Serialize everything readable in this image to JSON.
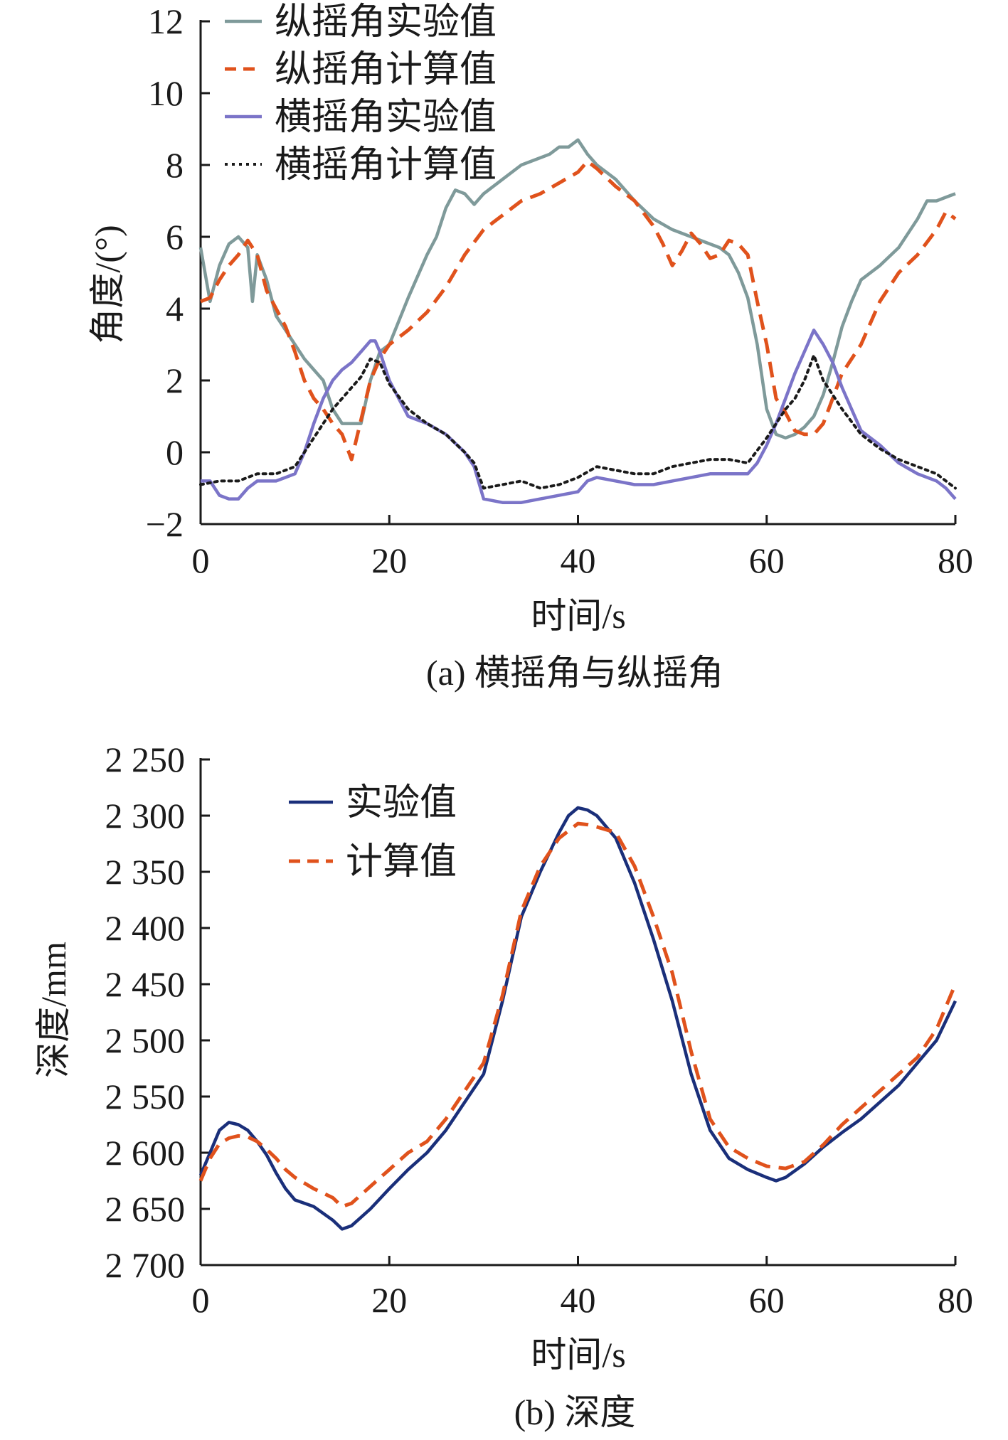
{
  "colors": {
    "pitch_exp": "#7f9a9a",
    "pitch_calc": "#e0521c",
    "roll_exp": "#7b74c8",
    "roll_calc": "#1a1a1a",
    "depth_exp": "#1a2f7a",
    "depth_calc": "#e0521c",
    "axis": "#1a1a1a"
  },
  "chart_data": [
    {
      "type": "line",
      "title": "",
      "caption": "(a) 横摇角与纵摇角",
      "xlabel": "时间/s",
      "ylabel": "角度/(°)",
      "xlim": [
        0,
        80
      ],
      "ylim": [
        -2,
        12
      ],
      "xticks": [
        0,
        20,
        40,
        60,
        80
      ],
      "xtick_labels": [
        "0",
        "20",
        "40",
        "60",
        "80"
      ],
      "yticks": [
        -2,
        0,
        2,
        4,
        6,
        8,
        10,
        12
      ],
      "ytick_labels": [
        "−2",
        "0",
        "2",
        "4",
        "6",
        "8",
        "10",
        "12"
      ],
      "legend": "top-left",
      "series": [
        {
          "name": "纵摇角实验值",
          "style": "solid",
          "color_key": "pitch_exp",
          "x": [
            0,
            1,
            2,
            3,
            4,
            5,
            5.5,
            6,
            7,
            8,
            9,
            10,
            11,
            12,
            13,
            14,
            15,
            16,
            17,
            18,
            19,
            20,
            22,
            24,
            25,
            26,
            27,
            28,
            29,
            30,
            32,
            34,
            36,
            37,
            38,
            39,
            40,
            41,
            42,
            44,
            46,
            48,
            50,
            52,
            54,
            55,
            56,
            57,
            58,
            59,
            60,
            61,
            62,
            63,
            64,
            65,
            66,
            67,
            68,
            69,
            70,
            72,
            74,
            76,
            77,
            78,
            79,
            80
          ],
          "values": [
            5.7,
            4.2,
            5.2,
            5.8,
            6.0,
            5.7,
            4.2,
            5.5,
            4.8,
            3.8,
            3.4,
            3.0,
            2.6,
            2.3,
            2.0,
            1.2,
            0.8,
            0.8,
            0.8,
            2.0,
            2.8,
            3.0,
            4.3,
            5.5,
            6.0,
            6.8,
            7.3,
            7.2,
            6.9,
            7.2,
            7.6,
            8.0,
            8.2,
            8.3,
            8.5,
            8.5,
            8.7,
            8.3,
            8.0,
            7.6,
            7.0,
            6.5,
            6.2,
            6.0,
            5.8,
            5.7,
            5.5,
            5.0,
            4.3,
            3.0,
            1.2,
            0.5,
            0.4,
            0.5,
            0.7,
            1.0,
            1.6,
            2.5,
            3.5,
            4.2,
            4.8,
            5.2,
            5.7,
            6.5,
            7.0,
            7.0,
            7.1,
            7.2
          ]
        },
        {
          "name": "纵摇角计算值",
          "style": "dashed",
          "color_key": "pitch_calc",
          "x": [
            0,
            1,
            2,
            3,
            4,
            5,
            6,
            7,
            8,
            9,
            10,
            11,
            12,
            13,
            14,
            15,
            16,
            17,
            18,
            19,
            20,
            22,
            24,
            26,
            28,
            30,
            32,
            34,
            36,
            38,
            40,
            41,
            42,
            44,
            46,
            48,
            49,
            50,
            51,
            52,
            53,
            54,
            55,
            56,
            57,
            58,
            59,
            60,
            61,
            62,
            63,
            64,
            65,
            66,
            67,
            68,
            70,
            72,
            74,
            76,
            78,
            79,
            80
          ],
          "values": [
            4.2,
            4.3,
            4.8,
            5.2,
            5.5,
            5.9,
            5.5,
            4.5,
            4.0,
            3.5,
            2.8,
            2.0,
            1.5,
            1.2,
            0.8,
            0.5,
            -0.2,
            0.9,
            2.0,
            2.6,
            3.0,
            3.4,
            3.9,
            4.6,
            5.5,
            6.2,
            6.6,
            7.0,
            7.2,
            7.5,
            7.8,
            8.1,
            7.9,
            7.4,
            7.0,
            6.3,
            5.8,
            5.2,
            5.6,
            6.1,
            5.8,
            5.4,
            5.5,
            5.9,
            5.8,
            5.5,
            4.2,
            3.0,
            1.5,
            1.1,
            0.6,
            0.5,
            0.5,
            0.8,
            1.5,
            2.2,
            3.0,
            4.2,
            5.0,
            5.5,
            6.2,
            6.7,
            6.5
          ]
        },
        {
          "name": "横摇角实验值",
          "style": "solid",
          "color_key": "roll_exp",
          "x": [
            0,
            1,
            2,
            3,
            4,
            5,
            6,
            7,
            8,
            9,
            10,
            11,
            12,
            13,
            14,
            15,
            16,
            17,
            18,
            18.5,
            19,
            20,
            21,
            22,
            24,
            26,
            28,
            29,
            30,
            32,
            34,
            36,
            38,
            40,
            41,
            42,
            44,
            46,
            48,
            50,
            52,
            54,
            56,
            58,
            59,
            60,
            61,
            62,
            63,
            64,
            65,
            66,
            67,
            68,
            69,
            70,
            72,
            74,
            76,
            78,
            79,
            80
          ],
          "values": [
            -0.8,
            -0.8,
            -1.2,
            -1.3,
            -1.3,
            -1.0,
            -0.8,
            -0.8,
            -0.8,
            -0.7,
            -0.6,
            0.0,
            0.8,
            1.5,
            2.0,
            2.3,
            2.5,
            2.8,
            3.1,
            3.1,
            2.8,
            2.0,
            1.5,
            1.0,
            0.8,
            0.5,
            0.0,
            -0.4,
            -1.3,
            -1.4,
            -1.4,
            -1.3,
            -1.2,
            -1.1,
            -0.8,
            -0.7,
            -0.8,
            -0.9,
            -0.9,
            -0.8,
            -0.7,
            -0.6,
            -0.6,
            -0.6,
            -0.3,
            0.2,
            0.8,
            1.5,
            2.2,
            2.8,
            3.4,
            3.0,
            2.5,
            1.8,
            1.2,
            0.6,
            0.2,
            -0.3,
            -0.6,
            -0.8,
            -1.0,
            -1.3
          ]
        },
        {
          "name": "横摇角计算值",
          "style": "dotted",
          "color_key": "roll_calc",
          "x": [
            0,
            2,
            4,
            6,
            8,
            10,
            11,
            12,
            13,
            14,
            15,
            16,
            17,
            18,
            19,
            20,
            22,
            24,
            26,
            28,
            29,
            30,
            32,
            34,
            36,
            38,
            40,
            42,
            44,
            46,
            48,
            50,
            52,
            54,
            56,
            58,
            60,
            61,
            62,
            63,
            64,
            65,
            66,
            67,
            68,
            70,
            72,
            74,
            76,
            78,
            80
          ],
          "values": [
            -0.9,
            -0.8,
            -0.8,
            -0.6,
            -0.6,
            -0.4,
            0.0,
            0.4,
            0.8,
            1.2,
            1.5,
            1.8,
            2.1,
            2.6,
            2.5,
            1.9,
            1.2,
            0.8,
            0.5,
            0.0,
            -0.3,
            -1.0,
            -0.9,
            -0.8,
            -1.0,
            -0.9,
            -0.7,
            -0.4,
            -0.5,
            -0.6,
            -0.6,
            -0.4,
            -0.3,
            -0.2,
            -0.2,
            -0.3,
            0.4,
            0.8,
            1.2,
            1.5,
            2.0,
            2.7,
            2.0,
            1.6,
            1.2,
            0.5,
            0.1,
            -0.2,
            -0.4,
            -0.6,
            -1.0
          ]
        }
      ]
    },
    {
      "type": "line",
      "title": "",
      "caption": "(b) 深度",
      "xlabel": "时间/s",
      "ylabel": "深度/mm",
      "xlim": [
        0,
        80
      ],
      "ylim": [
        2250,
        2700
      ],
      "y_inverted": true,
      "xticks": [
        0,
        20,
        40,
        60,
        80
      ],
      "xtick_labels": [
        "0",
        "20",
        "40",
        "60",
        "80"
      ],
      "yticks": [
        2250,
        2300,
        2350,
        2400,
        2450,
        2500,
        2550,
        2600,
        2650,
        2700
      ],
      "ytick_labels": [
        "2 250",
        "2 300",
        "2 350",
        "2 400",
        "2 450",
        "2 500",
        "2 550",
        "2 600",
        "2 650",
        "2 700"
      ],
      "legend": "top-left",
      "series": [
        {
          "name": "实验值",
          "style": "solid",
          "color_key": "depth_exp",
          "x": [
            0,
            1,
            2,
            3,
            4,
            5,
            6,
            7,
            8,
            9,
            10,
            12,
            14,
            15,
            16,
            18,
            20,
            22,
            24,
            26,
            28,
            30,
            32,
            34,
            36,
            38,
            39,
            40,
            41,
            42,
            44,
            46,
            48,
            50,
            52,
            54,
            56,
            58,
            60,
            61,
            62,
            64,
            66,
            68,
            70,
            72,
            74,
            76,
            78,
            80
          ],
          "values": [
            2620,
            2600,
            2580,
            2573,
            2575,
            2580,
            2590,
            2602,
            2618,
            2632,
            2642,
            2648,
            2660,
            2668,
            2665,
            2650,
            2632,
            2615,
            2600,
            2580,
            2555,
            2530,
            2465,
            2390,
            2350,
            2315,
            2300,
            2293,
            2295,
            2300,
            2320,
            2360,
            2410,
            2465,
            2530,
            2580,
            2605,
            2615,
            2622,
            2625,
            2622,
            2610,
            2595,
            2582,
            2570,
            2555,
            2540,
            2520,
            2500,
            2465
          ]
        },
        {
          "name": "计算值",
          "style": "dashed",
          "color_key": "depth_calc",
          "x": [
            0,
            1,
            2,
            3,
            4,
            5,
            6,
            7,
            8,
            9,
            10,
            12,
            14,
            15,
            16,
            18,
            20,
            22,
            24,
            26,
            28,
            30,
            32,
            34,
            36,
            38,
            40,
            41,
            42,
            44,
            46,
            48,
            50,
            52,
            54,
            56,
            58,
            60,
            61,
            62,
            64,
            66,
            68,
            70,
            72,
            74,
            76,
            78,
            80
          ],
          "values": [
            2625,
            2605,
            2592,
            2587,
            2585,
            2586,
            2590,
            2597,
            2605,
            2615,
            2622,
            2632,
            2640,
            2648,
            2645,
            2630,
            2615,
            2600,
            2590,
            2570,
            2545,
            2520,
            2460,
            2385,
            2345,
            2320,
            2307,
            2308,
            2310,
            2315,
            2345,
            2390,
            2440,
            2510,
            2570,
            2595,
            2605,
            2612,
            2613,
            2614,
            2608,
            2593,
            2575,
            2560,
            2545,
            2530,
            2515,
            2490,
            2450
          ]
        }
      ]
    }
  ]
}
